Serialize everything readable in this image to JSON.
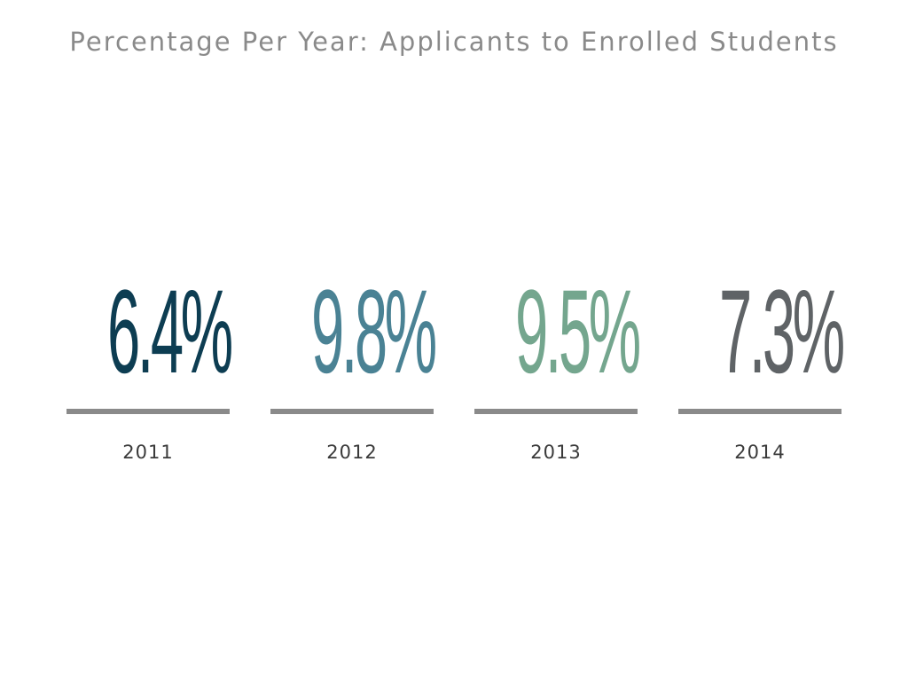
{
  "chart_data": {
    "type": "table",
    "title": "Percentage Per Year: Applicants to Enrolled Students",
    "categories": [
      "2011",
      "2012",
      "2013",
      "2014"
    ],
    "values": [
      6.4,
      9.8,
      9.5,
      7.3
    ],
    "value_labels": [
      "6.4%",
      "9.8%",
      "9.5%",
      "7.3%"
    ],
    "unit": "%",
    "colors": [
      "#0d3d52",
      "#4a8294",
      "#74a68e",
      "#5f6366"
    ],
    "bar_color": "#8a8a8a",
    "grid": false,
    "legend": "none"
  }
}
